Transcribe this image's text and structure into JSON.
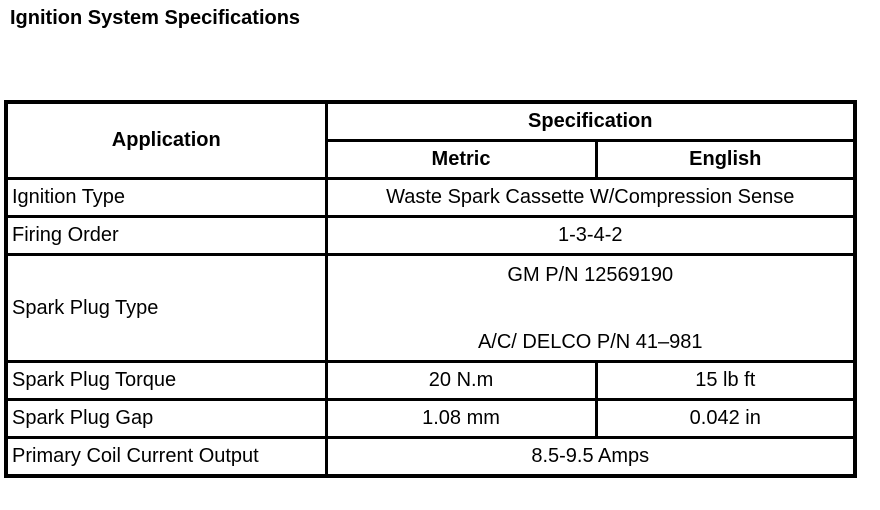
{
  "title": "Ignition System Specifications",
  "table": {
    "headers": {
      "application": "Application",
      "specification": "Specification",
      "metric": "Metric",
      "english": "English"
    },
    "rows": [
      {
        "application": "Ignition Type",
        "value": "Waste Spark Cassette W/Compression Sense"
      },
      {
        "application": "Firing Order",
        "value": "1-3-4-2"
      },
      {
        "application": "Spark Plug Type",
        "value_line1": "GM P/N 12569190",
        "value_line2": "A/C/ DELCO P/N 41–981"
      },
      {
        "application": "Spark Plug Torque",
        "metric": "20 N.m",
        "english": "15 lb ft"
      },
      {
        "application": "Spark Plug Gap",
        "metric": "1.08 mm",
        "english": "0.042 in"
      },
      {
        "application": "Primary Coil Current Output",
        "value": "8.5-9.5 Amps"
      }
    ]
  }
}
